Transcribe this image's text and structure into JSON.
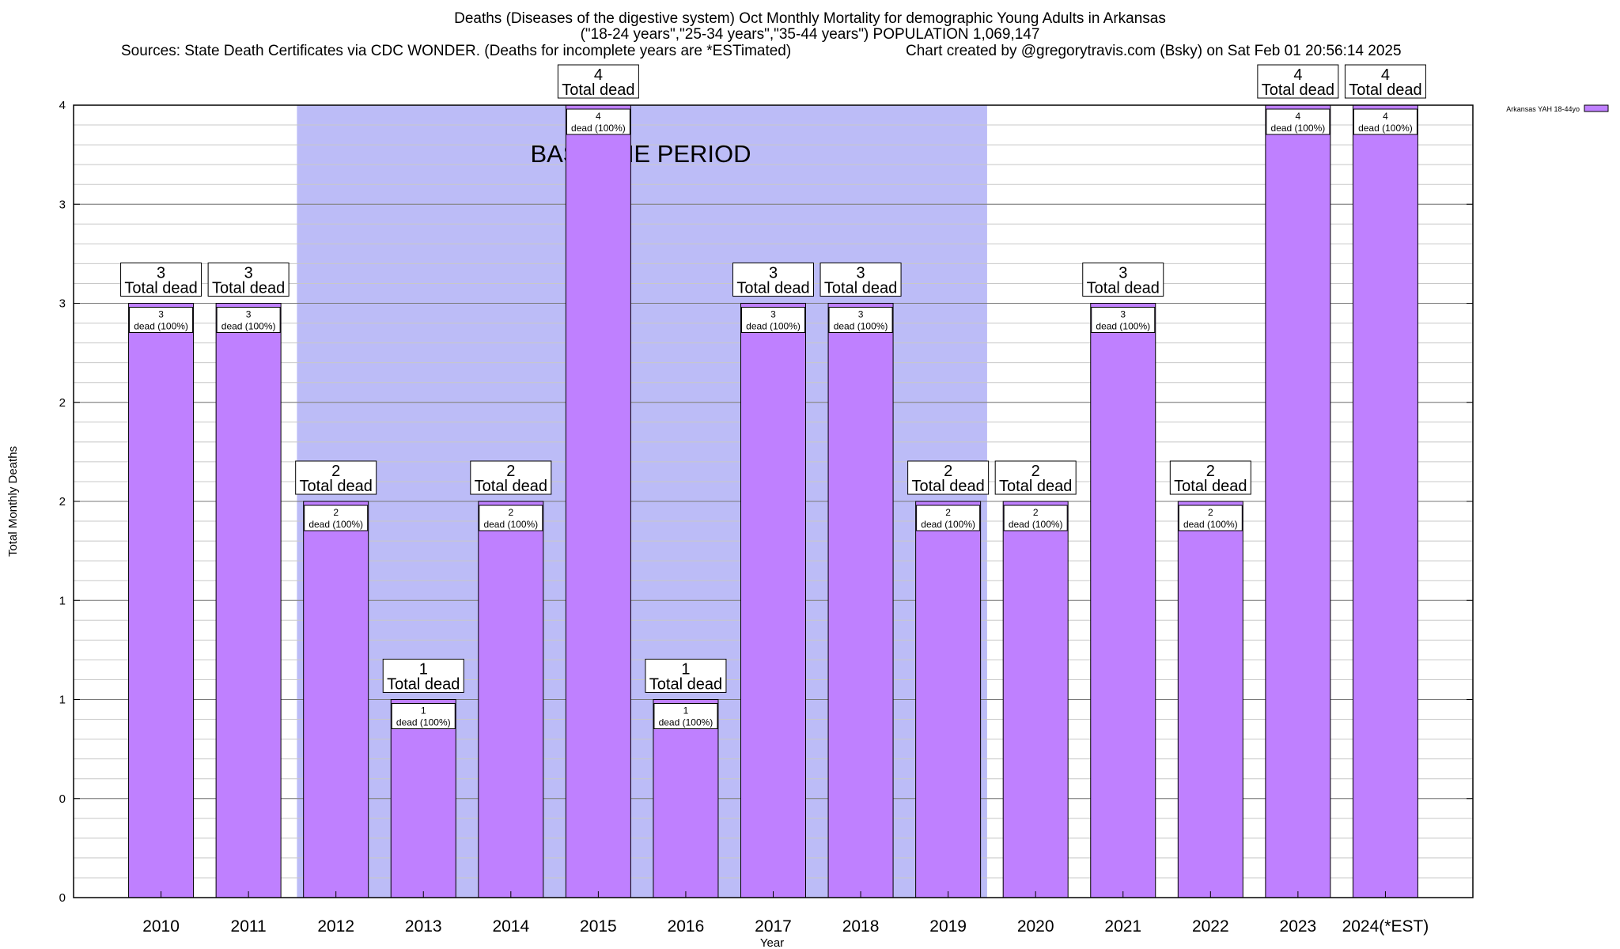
{
  "header": {
    "title_line1": "Deaths (Diseases of the digestive system) Oct Monthly Mortality for demographic Young Adults in Arkansas",
    "title_line2": "(\"18-24 years\",\"25-34 years\",\"35-44 years\") POPULATION 1,069,147",
    "sources": "Sources: State Death Certificates via CDC WONDER. (Deaths for incomplete years are *ESTimated)",
    "credit": "Chart created by @gregorytravis.com (Bsky) on Sat Feb 01 20:56:14 2025"
  },
  "chart_data": {
    "type": "bar",
    "xlabel": "Year",
    "ylabel": "Total Monthly Deaths",
    "ylim": [
      0,
      4
    ],
    "yticks": [
      0,
      0.5,
      1,
      1.5,
      2,
      2.5,
      3,
      3.5,
      4
    ],
    "ytick_labels": [
      "0",
      "0",
      "1",
      "1",
      "2",
      "2",
      "3",
      "3",
      "4"
    ],
    "grid": true,
    "legend_position": "top-right",
    "categories": [
      "2010",
      "2011",
      "2012",
      "2013",
      "2014",
      "2015",
      "2016",
      "2017",
      "2018",
      "2019",
      "2020",
      "2021",
      "2022",
      "2023",
      "2024(*EST)"
    ],
    "series": [
      {
        "name": "Arkansas YAH 18-44yo",
        "color": "#bf80ff",
        "values": [
          3,
          3,
          2,
          1,
          2,
          4,
          1,
          3,
          3,
          2,
          2,
          3,
          2,
          4,
          4
        ]
      }
    ],
    "total_label_suffix": "Total dead",
    "inner_label_suffix": "dead (100%)",
    "baseline": {
      "label": "BASELINE PERIOD",
      "start": "2012",
      "end": "2019",
      "color": "#bcbcf7"
    }
  }
}
